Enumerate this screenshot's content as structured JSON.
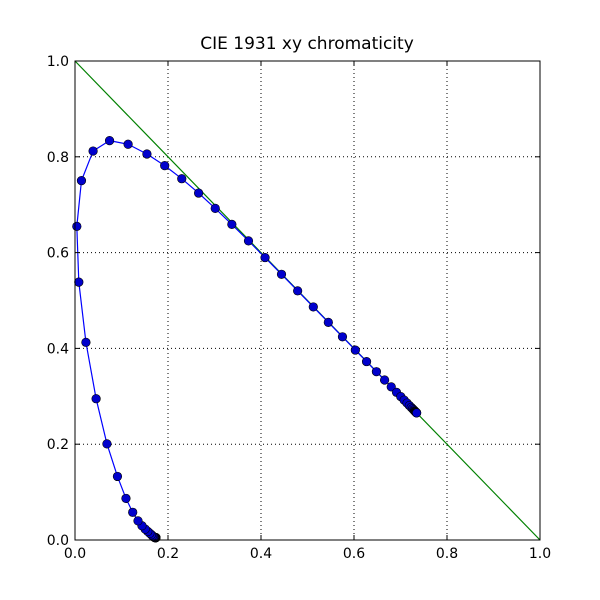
{
  "chart_data": {
    "type": "line",
    "title": "CIE 1931 xy chromaticity",
    "xlabel": "",
    "ylabel": "",
    "xlim": [
      0,
      1
    ],
    "ylim": [
      0,
      1
    ],
    "grid": true,
    "x_ticks": [
      "0.0",
      "0.2",
      "0.4",
      "0.6",
      "0.8",
      "1.0"
    ],
    "y_ticks": [
      "0.0",
      "0.2",
      "0.4",
      "0.6",
      "0.8",
      "1.0"
    ],
    "colors": {
      "locus": "#0000ff",
      "marker": "#0000cc",
      "diagonal": "#008000",
      "grid": "#000000"
    },
    "series": [
      {
        "type": "line+markers",
        "points": [
          [
            0.1741,
            0.005
          ],
          [
            0.174,
            0.005
          ],
          [
            0.1738,
            0.0049
          ],
          [
            0.1736,
            0.0049
          ],
          [
            0.1733,
            0.0048
          ],
          [
            0.173,
            0.0048
          ],
          [
            0.1726,
            0.0048
          ],
          [
            0.1721,
            0.0048
          ],
          [
            0.1714,
            0.0051
          ],
          [
            0.1703,
            0.0058
          ],
          [
            0.1689,
            0.0069
          ],
          [
            0.1669,
            0.0086
          ],
          [
            0.1644,
            0.0109
          ],
          [
            0.1611,
            0.0138
          ],
          [
            0.1566,
            0.0177
          ],
          [
            0.151,
            0.0227
          ],
          [
            0.144,
            0.0297
          ],
          [
            0.1355,
            0.0399
          ],
          [
            0.1241,
            0.0578
          ],
          [
            0.1096,
            0.0868
          ],
          [
            0.0913,
            0.1327
          ],
          [
            0.0687,
            0.2007
          ],
          [
            0.0454,
            0.295
          ],
          [
            0.0235,
            0.4127
          ],
          [
            0.0082,
            0.5384
          ],
          [
            0.0039,
            0.6548
          ],
          [
            0.0139,
            0.7502
          ],
          [
            0.0389,
            0.812
          ],
          [
            0.0743,
            0.8338
          ],
          [
            0.1142,
            0.8262
          ],
          [
            0.1547,
            0.8059
          ],
          [
            0.1929,
            0.7816
          ],
          [
            0.2296,
            0.7543
          ],
          [
            0.2658,
            0.7243
          ],
          [
            0.3016,
            0.6923
          ],
          [
            0.3373,
            0.6589
          ],
          [
            0.3731,
            0.6245
          ],
          [
            0.4087,
            0.5896
          ],
          [
            0.4441,
            0.5547
          ],
          [
            0.4788,
            0.5202
          ],
          [
            0.5125,
            0.4866
          ],
          [
            0.5448,
            0.4544
          ],
          [
            0.5752,
            0.4242
          ],
          [
            0.6029,
            0.3965
          ],
          [
            0.627,
            0.3725
          ],
          [
            0.6482,
            0.3514
          ],
          [
            0.6658,
            0.334
          ],
          [
            0.6801,
            0.3197
          ],
          [
            0.6915,
            0.3083
          ],
          [
            0.7006,
            0.2993
          ],
          [
            0.7079,
            0.292
          ],
          [
            0.714,
            0.2859
          ],
          [
            0.719,
            0.2809
          ],
          [
            0.723,
            0.277
          ],
          [
            0.726,
            0.274
          ],
          [
            0.7283,
            0.2717
          ],
          [
            0.73,
            0.27
          ],
          [
            0.7311,
            0.2689
          ],
          [
            0.732,
            0.268
          ],
          [
            0.7327,
            0.2673
          ],
          [
            0.7334,
            0.2666
          ],
          [
            0.734,
            0.266
          ],
          [
            0.7344,
            0.2656
          ],
          [
            0.7346,
            0.2654
          ],
          [
            0.7347,
            0.2653
          ]
        ]
      },
      {
        "type": "line",
        "points": [
          [
            0,
            1
          ],
          [
            1,
            0
          ]
        ]
      }
    ]
  }
}
